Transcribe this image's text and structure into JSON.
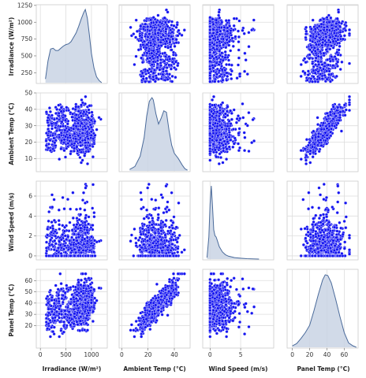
{
  "chart_data": {
    "type": "scatter",
    "kind": "pairplot",
    "grid": true,
    "legend": "none",
    "colors": {
      "points": "#1515f0",
      "point_edge": "#ffffff",
      "kde_fill": "#c9d3e4",
      "kde_line": "#4a6a9a",
      "grid": "#dddddd",
      "frame": "#cccccc"
    },
    "variables": [
      {
        "key": "irr",
        "label": "Irradiance (W/m²)",
        "range": [
          90,
          1220
        ],
        "ticks": [
          0,
          500,
          1000
        ],
        "ylim": [
          90,
          1260
        ],
        "yticks": [
          250,
          500,
          750,
          1000,
          1250
        ]
      },
      {
        "key": "amb",
        "label": "Ambient Temp (°C)",
        "range": [
          6,
          48
        ],
        "ticks": [
          0,
          20,
          40
        ],
        "ylim": [
          2,
          50
        ],
        "yticks": [
          10,
          20,
          30,
          40,
          50
        ]
      },
      {
        "key": "wind",
        "label": "Wind Speed (m/s)",
        "range": [
          0,
          7.5
        ],
        "ticks": [
          0,
          5
        ],
        "ylim": [
          -0.4,
          7.5
        ],
        "yticks": [
          0,
          2,
          4,
          6
        ]
      },
      {
        "key": "panel",
        "label": "Panel Temp (°C)",
        "range": [
          4,
          66
        ],
        "ticks": [
          0,
          20,
          40,
          60
        ],
        "ylim": [
          0,
          70
        ],
        "yticks": [
          20,
          30,
          40,
          50,
          60
        ]
      }
    ],
    "x_axes": [
      {
        "min": -80,
        "max": 1310,
        "ticks": [
          0,
          500,
          1000
        ]
      },
      {
        "min": -2,
        "max": 52,
        "ticks": [
          0,
          20,
          40
        ]
      },
      {
        "min": -1.2,
        "max": 10.4,
        "ticks": [
          0,
          5
        ]
      },
      {
        "min": -6,
        "max": 76,
        "ticks": [
          0,
          20,
          40,
          60
        ]
      }
    ],
    "y_axes": [
      {
        "min": 90,
        "max": 1260,
        "ticks": [
          250,
          500,
          750,
          1000,
          1250
        ]
      },
      {
        "min": 2,
        "max": 50,
        "ticks": [
          10,
          20,
          30,
          40,
          50
        ]
      },
      {
        "min": -0.4,
        "max": 7.5,
        "ticks": [
          0,
          2,
          4,
          6
        ]
      },
      {
        "min": 0,
        "max": 70,
        "ticks": [
          20,
          30,
          40,
          50,
          60
        ]
      }
    ],
    "kde": [
      {
        "var": "irr",
        "x": [
          100,
          150,
          200,
          250,
          300,
          350,
          400,
          450,
          500,
          550,
          600,
          650,
          700,
          750,
          800,
          850,
          880,
          920,
          960,
          1000,
          1050,
          1100,
          1150,
          1200
        ],
        "density": [
          0.05,
          0.3,
          0.46,
          0.47,
          0.44,
          0.44,
          0.47,
          0.5,
          0.52,
          0.53,
          0.56,
          0.62,
          0.68,
          0.77,
          0.87,
          0.96,
          1.0,
          0.88,
          0.65,
          0.4,
          0.2,
          0.08,
          0.03,
          0.0
        ]
      },
      {
        "var": "amb",
        "x": [
          6,
          10,
          14,
          17,
          19,
          21,
          23,
          24,
          26,
          28,
          30,
          32,
          34,
          36,
          38,
          40,
          43,
          46,
          48,
          50
        ],
        "density": [
          0.02,
          0.06,
          0.2,
          0.45,
          0.75,
          0.95,
          1.0,
          0.97,
          0.78,
          0.64,
          0.72,
          0.82,
          0.8,
          0.55,
          0.35,
          0.24,
          0.17,
          0.08,
          0.03,
          0.01
        ]
      },
      {
        "var": "wind",
        "x": [
          -0.5,
          -0.2,
          0,
          0.2,
          0.4,
          0.6,
          0.8,
          1.0,
          1.2,
          1.5,
          2.0,
          2.5,
          3.0,
          4.0,
          5.0,
          6.0,
          7.0,
          8.0
        ],
        "density": [
          0.02,
          0.3,
          0.75,
          1.0,
          0.72,
          0.4,
          0.32,
          0.3,
          0.25,
          0.17,
          0.1,
          0.06,
          0.04,
          0.02,
          0.012,
          0.006,
          0.003,
          0.0
        ]
      },
      {
        "var": "panel",
        "x": [
          0,
          5,
          10,
          15,
          20,
          25,
          30,
          35,
          38,
          41,
          45,
          50,
          55,
          60,
          65,
          70,
          74
        ],
        "density": [
          0.02,
          0.05,
          0.12,
          0.2,
          0.3,
          0.5,
          0.72,
          0.92,
          0.99,
          0.98,
          0.88,
          0.66,
          0.42,
          0.2,
          0.06,
          0.02,
          0.0
        ]
      }
    ],
    "scatter": [
      {
        "x": "amb",
        "y": "irr",
        "x_range": [
          6,
          48
        ],
        "y_range": [
          90,
          1220
        ],
        "relation": "none"
      },
      {
        "x": "wind",
        "y": "irr",
        "x_range": [
          0,
          7.5
        ],
        "y_range": [
          90,
          1220
        ],
        "relation": "none"
      },
      {
        "x": "panel",
        "y": "irr",
        "x_range": [
          4,
          66
        ],
        "y_range": [
          90,
          1220
        ],
        "relation": "weak positive"
      },
      {
        "x": "irr",
        "y": "amb",
        "x_range": [
          90,
          1220
        ],
        "y_range": [
          6,
          48
        ],
        "relation": "none"
      },
      {
        "x": "wind",
        "y": "amb",
        "x_range": [
          0,
          7.5
        ],
        "y_range": [
          6,
          48
        ],
        "relation": "none"
      },
      {
        "x": "panel",
        "y": "amb",
        "x_range": [
          4,
          66
        ],
        "y_range": [
          6,
          48
        ],
        "relation": "strong positive"
      },
      {
        "x": "irr",
        "y": "wind",
        "x_range": [
          90,
          1220
        ],
        "y_range": [
          0,
          7.2
        ],
        "relation": "none"
      },
      {
        "x": "amb",
        "y": "wind",
        "x_range": [
          6,
          48
        ],
        "y_range": [
          0,
          7.2
        ],
        "relation": "none"
      },
      {
        "x": "panel",
        "y": "wind",
        "x_range": [
          4,
          66
        ],
        "y_range": [
          0,
          7.2
        ],
        "relation": "none"
      },
      {
        "x": "irr",
        "y": "panel",
        "x_range": [
          90,
          1220
        ],
        "y_range": [
          4,
          66
        ],
        "relation": "weak positive"
      },
      {
        "x": "amb",
        "y": "panel",
        "x_range": [
          6,
          48
        ],
        "y_range": [
          4,
          66
        ],
        "relation": "strong positive"
      },
      {
        "x": "wind",
        "y": "panel",
        "x_range": [
          0,
          7.5
        ],
        "y_range": [
          4,
          66
        ],
        "relation": "none"
      }
    ]
  }
}
